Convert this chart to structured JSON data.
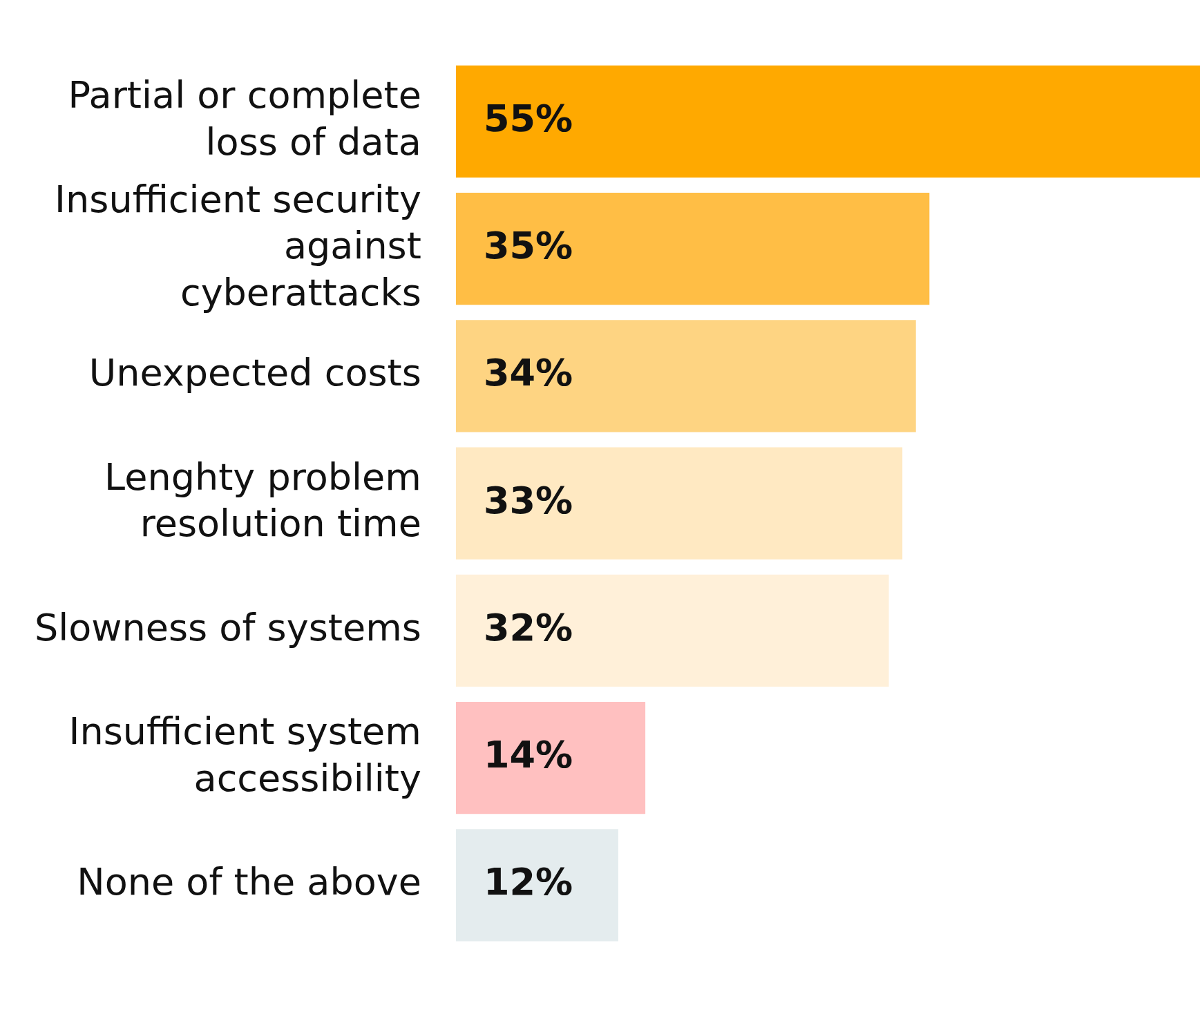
{
  "chart_data": {
    "type": "bar",
    "orientation": "horizontal",
    "categories": [
      "Partial or complete loss of data",
      "Insufficient security against cyberattacks",
      "Unexpected costs",
      "Lenghty problem resolution time",
      "Slowness of systems",
      "Insufficient system accessibility",
      "None of the above"
    ],
    "values": [
      55,
      35,
      34,
      33,
      32,
      14,
      12
    ],
    "value_labels": [
      "55%",
      "35%",
      "34%",
      "33%",
      "32%",
      "14%",
      "12%"
    ],
    "colors": [
      "#ffa900",
      "#ffbe45",
      "#fed482",
      "#ffe9c2",
      "#fff0d9",
      "#ffc0c0",
      "#e4ecee"
    ],
    "xlim": [
      0,
      55
    ],
    "tick_labels": "y",
    "grid": false,
    "legend": false
  }
}
